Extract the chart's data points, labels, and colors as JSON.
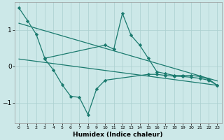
{
  "xlabel": "Humidex (Indice chaleur)",
  "background_color": "#cce8e8",
  "line_color": "#1a7a6e",
  "grid_color": "#aacfcf",
  "xlim": [
    -0.5,
    23.5
  ],
  "ylim": [
    -1.55,
    1.75
  ],
  "xticks": [
    0,
    1,
    2,
    3,
    4,
    5,
    6,
    7,
    8,
    9,
    10,
    11,
    12,
    13,
    14,
    15,
    16,
    17,
    18,
    19,
    20,
    21,
    22,
    23
  ],
  "yticks": [
    -1,
    0,
    1
  ],
  "line1_x": [
    0,
    1,
    2,
    3,
    10,
    11,
    12,
    13,
    14,
    15,
    16,
    17,
    18,
    19,
    20,
    21,
    22,
    23
  ],
  "line1_y": [
    1.6,
    1.25,
    0.88,
    0.22,
    0.58,
    0.47,
    1.45,
    0.85,
    0.58,
    0.22,
    -0.15,
    -0.2,
    -0.25,
    -0.25,
    -0.25,
    -0.28,
    -0.35,
    -0.52
  ],
  "line2_x": [
    0,
    23
  ],
  "line2_y": [
    1.18,
    -0.4
  ],
  "line3_x": [
    3,
    4,
    5,
    6,
    7,
    8,
    9,
    10,
    15,
    16,
    17,
    18,
    19,
    20,
    21,
    22,
    23
  ],
  "line3_y": [
    0.2,
    -0.1,
    -0.5,
    -0.82,
    -0.85,
    -1.32,
    -0.62,
    -0.38,
    -0.22,
    -0.22,
    -0.25,
    -0.27,
    -0.28,
    -0.3,
    -0.33,
    -0.38,
    -0.52
  ],
  "line4_x": [
    0,
    23
  ],
  "line4_y": [
    0.2,
    -0.52
  ],
  "marker": "D",
  "markersize": 2.2,
  "linewidth": 0.9
}
